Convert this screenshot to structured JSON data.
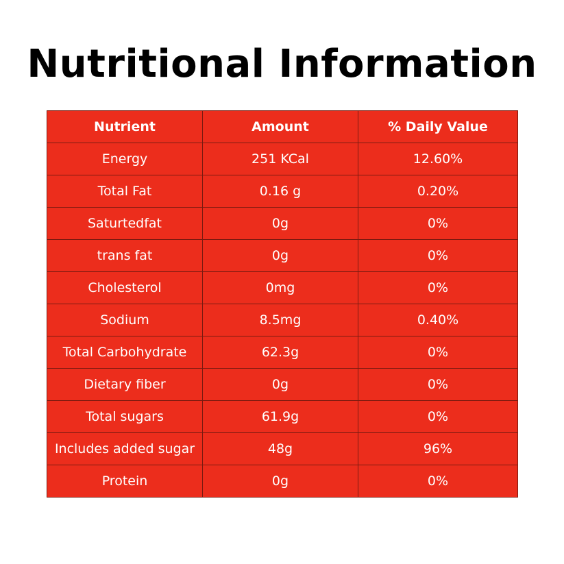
{
  "title": "Nutritional Information",
  "table": {
    "headers": [
      "Nutrient",
      "Amount",
      "% Daily Value"
    ],
    "rows": [
      [
        "Energy",
        "251 KCal",
        "12.60%"
      ],
      [
        "Total Fat",
        "0.16 g",
        "0.20%"
      ],
      [
        "Saturtedfat",
        "0g",
        "0%"
      ],
      [
        "trans fat",
        "0g",
        "0%"
      ],
      [
        "Cholesterol",
        "0mg",
        "0%"
      ],
      [
        "Sodium",
        "8.5mg",
        "0.40%"
      ],
      [
        "Total Carbohydrate",
        "62.3g",
        "0%"
      ],
      [
        "Dietary fiber",
        "0g",
        "0%"
      ],
      [
        "Total sugars",
        "61.9g",
        "0%"
      ],
      [
        "Includes added sugar",
        "48g",
        "96%"
      ],
      [
        "Protein",
        "0g",
        "0%"
      ]
    ]
  },
  "colors": {
    "table_background": "#ec2d1c",
    "text_on_table": "#ffffff",
    "title_text": "#000000",
    "grid_lines": "#7a1a10"
  }
}
